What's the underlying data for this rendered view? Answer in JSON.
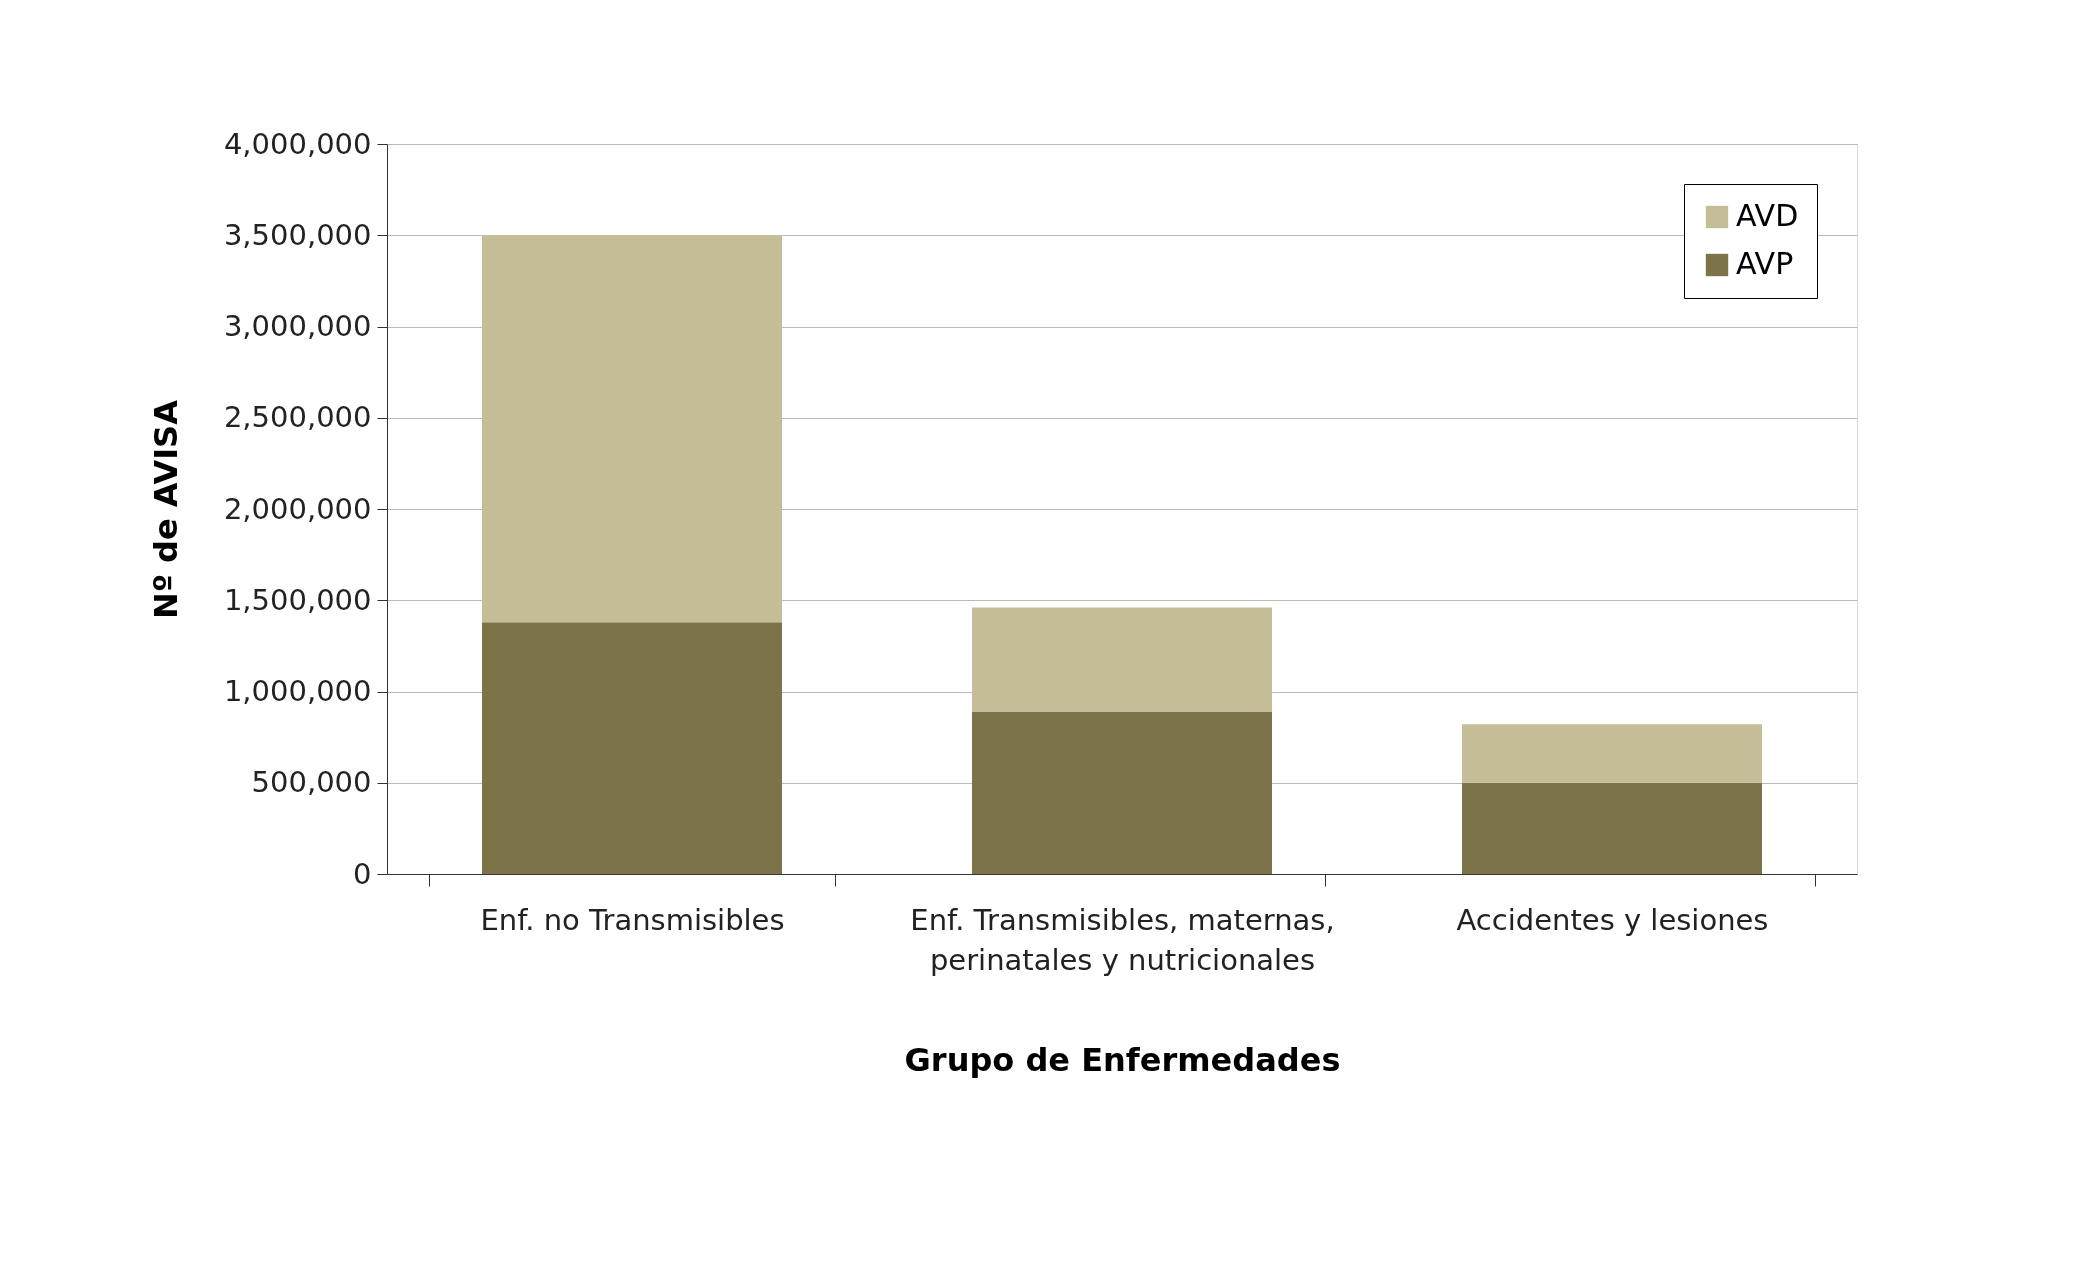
{
  "chart_data": {
    "type": "bar",
    "stacked": true,
    "xlabel": "Grupo de Enfermedades",
    "ylabel": "Nº de AVISA",
    "categories": [
      "Enf. no Transmisibles",
      "Enf. Transmisibles, maternas, perinatales y nutricionales",
      "Accidentes y lesiones"
    ],
    "series": [
      {
        "name": "AVP",
        "color": "#7d7349",
        "values": [
          1380000,
          890000,
          500000
        ]
      },
      {
        "name": "AVD",
        "color": "#c5bd97",
        "values": [
          2120000,
          570000,
          320000
        ]
      }
    ],
    "ylim": [
      0,
      4000000
    ],
    "yticks": [
      0,
      {
        "value": 500000,
        "label": "500,000"
      },
      {
        "value": 1000000,
        "label": "1,000,000"
      },
      {
        "value": 1500000,
        "label": "1,500,000"
      },
      {
        "value": 2000000,
        "label": "2,000,000"
      },
      {
        "value": 2500000,
        "label": "2,500,000"
      },
      {
        "value": 3000000,
        "label": "3,000,000"
      },
      {
        "value": 3500000,
        "label": "3,500,000"
      },
      {
        "value": 4000000,
        "label": "4,000,000"
      }
    ],
    "grid": "y",
    "legend": "top right"
  }
}
